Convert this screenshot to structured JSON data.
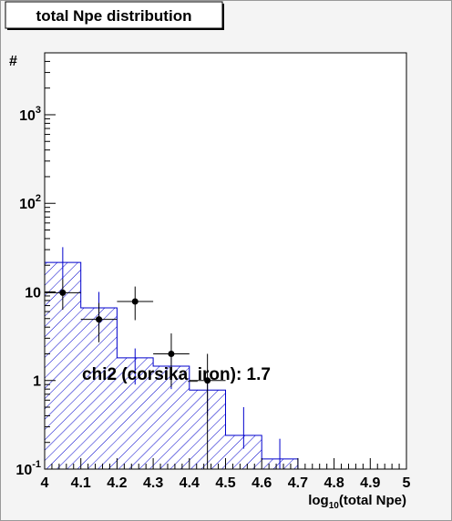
{
  "title": "total Npe distribution",
  "annotation": "chi2 (corsika_iron): 1.7",
  "chart_data": {
    "type": "histogram",
    "xlabel_base": "log",
    "xlabel_sub": "10",
    "xlabel_rest": "(total Npe)",
    "ylabel": "#",
    "xlim": [
      4,
      5
    ],
    "ylim": [
      0.1,
      5000
    ],
    "yscale": "log",
    "x_ticks": [
      "4",
      "4.1",
      "4.2",
      "4.3",
      "4.4",
      "4.5",
      "4.6",
      "4.7",
      "4.8",
      "4.9",
      "5"
    ],
    "y_ticks": [
      {
        "base": "10",
        "exp": "-1",
        "value": 0.1
      },
      {
        "base": "1",
        "exp": "",
        "value": 1
      },
      {
        "base": "10",
        "exp": "",
        "value": 10
      },
      {
        "base": "10",
        "exp": "2",
        "value": 100
      },
      {
        "base": "10",
        "exp": "3",
        "value": 1000
      }
    ],
    "histogram": {
      "name": "corsika_iron",
      "color": "#0000cc",
      "bins": [
        {
          "x0": 4.0,
          "x1": 4.1,
          "y": 21.5,
          "err": [
            14,
            32
          ]
        },
        {
          "x0": 4.1,
          "x1": 4.2,
          "y": 6.6,
          "err": [
            3.8,
            10
          ]
        },
        {
          "x0": 4.2,
          "x1": 4.3,
          "y": 1.8,
          "err": [
            0.9,
            2.3
          ]
        },
        {
          "x0": 4.3,
          "x1": 4.4,
          "y": 1.45,
          "err": [
            0.8,
            2.2
          ]
        },
        {
          "x0": 4.4,
          "x1": 4.5,
          "y": 0.78,
          "err": [
            0.4,
            1.1
          ]
        },
        {
          "x0": 4.5,
          "x1": 4.6,
          "y": 0.24,
          "err": [
            0.17,
            0.5
          ]
        },
        {
          "x0": 4.6,
          "x1": 4.7,
          "y": 0.13,
          "err": [
            0.1,
            0.22
          ]
        }
      ]
    },
    "data_points": {
      "color": "#000000",
      "points": [
        {
          "x": 4.05,
          "y": 9.8,
          "ylo": 6.3,
          "yhi": 14,
          "xlo": 4.0,
          "xhi": 4.1
        },
        {
          "x": 4.15,
          "y": 4.9,
          "ylo": 2.7,
          "yhi": 7.5,
          "xlo": 4.1,
          "xhi": 4.2
        },
        {
          "x": 4.25,
          "y": 7.8,
          "ylo": 4.8,
          "yhi": 11.5,
          "xlo": 4.2,
          "xhi": 4.3
        },
        {
          "x": 4.35,
          "y": 2.0,
          "ylo": 0.85,
          "yhi": 3.4,
          "xlo": 4.3,
          "xhi": 4.4
        },
        {
          "x": 4.45,
          "y": 1.0,
          "ylo": 0.1,
          "yhi": 2.0,
          "xlo": 4.4,
          "xhi": 4.5
        }
      ]
    }
  }
}
